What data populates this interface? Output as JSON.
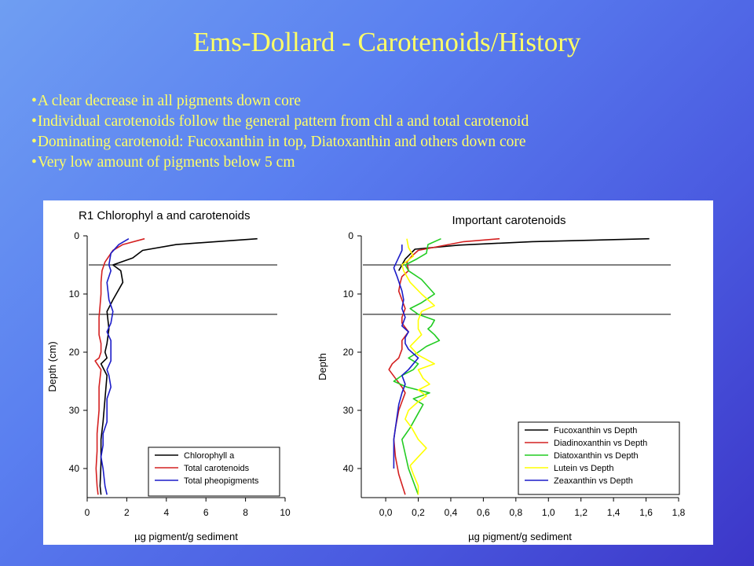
{
  "title": "Ems-Dollard - Carotenoids/History",
  "bullets": [
    "A clear decrease in all pigments down core",
    "Individual carotenoids follow the general pattern from chl a and total carotenoid",
    "Dominating carotenoid: Fucoxanthin in top, Diatoxanthin and others down core",
    "Very low amount of pigments below 5 cm"
  ],
  "chart_data": [
    {
      "type": "line",
      "title": "R1 Chlorophyl a and carotenoids",
      "xlabel": "µg pigment/g sediment",
      "ylabel": "Depth (cm)",
      "xlim": [
        0,
        10
      ],
      "ylim": [
        45,
        0
      ],
      "xticks": [
        "0",
        "2",
        "4",
        "6",
        "8",
        "10"
      ],
      "yticks": [
        "0",
        "10",
        "20",
        "30",
        "40"
      ],
      "reference_depths": [
        5,
        13.5
      ],
      "series": [
        {
          "name": "Chlorophyll a",
          "color": "#000000",
          "x": [
            8.6,
            6.5,
            4.5,
            2.8,
            2.3,
            1.3,
            1.7,
            1.8,
            1.3,
            1.0,
            1.1,
            1.0,
            0.9,
            1.0,
            0.7,
            1.0,
            0.9,
            0.8,
            0.7,
            0.7,
            0.65,
            0.7
          ],
          "y": [
            0.5,
            1,
            1.5,
            2.5,
            3.8,
            5,
            6,
            8,
            11,
            13,
            16,
            18.5,
            20,
            21,
            22,
            24,
            28,
            32,
            35,
            39,
            43,
            44.5
          ]
        },
        {
          "name": "Total carotenoids",
          "color": "#d42020",
          "x": [
            2.9,
            1.8,
            1.3,
            0.9,
            0.75,
            0.7,
            0.7,
            0.65,
            0.6,
            0.6,
            0.6,
            0.7,
            0.7,
            0.6,
            0.4,
            0.7,
            0.6,
            0.6,
            0.5,
            0.5,
            0.45,
            0.5,
            0.55
          ],
          "y": [
            0.5,
            1.5,
            2.5,
            4.5,
            6,
            8,
            10,
            12,
            14,
            15.5,
            17,
            18.5,
            20,
            21,
            21.5,
            23,
            26,
            30,
            34,
            37,
            40,
            43,
            44.5
          ]
        },
        {
          "name": "Total pheopigments",
          "color": "#1c1cc8",
          "x": [
            2.1,
            1.6,
            1.2,
            1.1,
            1.2,
            1.0,
            1.1,
            1.3,
            1.2,
            1.0,
            1.2,
            1.2,
            1.2,
            1.0,
            1.1,
            1.2,
            1.0,
            1.0,
            0.8,
            0.8,
            0.7,
            0.8,
            0.9,
            1.0
          ],
          "y": [
            0.5,
            1.5,
            3,
            5,
            6,
            8,
            11,
            13,
            15,
            16.5,
            18,
            20,
            21.5,
            23,
            24,
            26,
            28,
            32,
            34,
            36,
            38,
            40,
            43,
            44.5
          ]
        }
      ]
    },
    {
      "type": "line",
      "title": "Important carotenoids",
      "xlabel": "µg pigment/g sediment",
      "ylabel": "Depth",
      "xlim": [
        -0.15,
        1.8
      ],
      "ylim": [
        45,
        0
      ],
      "xticks": [
        "0,0",
        "0,2",
        "0,4",
        "0,6",
        "0,8",
        "1,0",
        "1,2",
        "1,4",
        "1,6",
        "1,8"
      ],
      "yticks": [
        "0",
        "10",
        "20",
        "30",
        "40"
      ],
      "reference_depths": [
        5,
        13.5
      ],
      "series": [
        {
          "name": "Fucoxanthin vs Depth",
          "color": "#000000",
          "x": [
            1.62,
            0.9,
            0.45,
            0.18,
            0.12,
            0.1,
            0.08
          ],
          "y": [
            0.5,
            1,
            1.6,
            2.3,
            4,
            5,
            6
          ]
        },
        {
          "name": "Diadinoxanthin vs Depth",
          "color": "#d42020",
          "x": [
            0.7,
            0.48,
            0.2,
            0.16,
            0.13,
            0.14,
            0.1,
            0.09,
            0.08,
            0.1,
            0.12,
            0.1,
            0.1,
            0.14,
            0.1,
            0.1,
            0.08,
            0.04,
            0.02,
            0.06,
            0.1,
            0.12,
            0.1,
            0.08,
            0.07,
            0.06,
            0.05,
            0.06,
            0.08,
            0.12
          ],
          "y": [
            0.5,
            1,
            2.5,
            3.5,
            4.5,
            6,
            7,
            8,
            9.5,
            11,
            12.5,
            14,
            15,
            16.5,
            18,
            19.5,
            21,
            22,
            23,
            24.5,
            26,
            27,
            28.5,
            30,
            31.5,
            33,
            35,
            38,
            41,
            44.5
          ]
        },
        {
          "name": "Diatoxanthin vs Depth",
          "color": "#22cc22",
          "x": [
            0.34,
            0.26,
            0.25,
            0.19,
            0.12,
            0.14,
            0.22,
            0.3,
            0.22,
            0.15,
            0.2,
            0.3,
            0.28,
            0.26,
            0.3,
            0.33,
            0.25,
            0.2,
            0.14,
            0.2,
            0.17,
            0.1,
            0.05,
            0.13,
            0.27,
            0.17,
            0.23,
            0.2,
            0.15,
            0.1,
            0.14,
            0.2
          ],
          "y": [
            0.5,
            1.5,
            3,
            4,
            5,
            6,
            7.5,
            10,
            11.5,
            12.5,
            13.5,
            14.5,
            15.5,
            16,
            17,
            18,
            19,
            20,
            21,
            22,
            23,
            24,
            25,
            26,
            27,
            28,
            29,
            30.5,
            33,
            35,
            40,
            44.5
          ]
        },
        {
          "name": "Lutein vs Depth",
          "color": "#ffff00",
          "x": [
            0.13,
            0.14,
            0.17,
            0.1,
            0.11,
            0.15,
            0.22,
            0.3,
            0.22,
            0.2,
            0.2,
            0.22,
            0.15,
            0.2,
            0.3,
            0.2,
            0.23,
            0.27,
            0.2,
            0.25,
            0.2,
            0.14,
            0.12,
            0.16,
            0.2,
            0.25,
            0.2,
            0.15,
            0.17,
            0.2,
            0.2
          ],
          "y": [
            0.5,
            2,
            3.5,
            5,
            6,
            8,
            10,
            12,
            13,
            14.5,
            16,
            17,
            19,
            20.5,
            22,
            23,
            24.5,
            25.5,
            26.5,
            27.5,
            28.5,
            30,
            31.5,
            33,
            35,
            36.5,
            38,
            39.5,
            41,
            43,
            44.5
          ]
        },
        {
          "name": "Zeaxanthin vs Depth",
          "color": "#1c1cc8",
          "x": [
            0.1,
            0.1,
            0.05,
            0.07,
            0.1,
            0.11,
            0.1,
            0.12,
            0.1,
            0.14,
            0.12,
            0.12,
            0.14,
            0.2,
            0.14,
            0.1,
            0.12,
            0.1,
            0.08,
            0.07,
            0.06,
            0.05,
            0.05,
            0.05,
            0.05
          ],
          "y": [
            1.5,
            2.5,
            5.5,
            7,
            9.5,
            11,
            12.5,
            14,
            15.5,
            16.5,
            17.5,
            18.5,
            19.5,
            21,
            23,
            24,
            25.5,
            27,
            29,
            31,
            33,
            35,
            37,
            39,
            40
          ]
        }
      ]
    }
  ]
}
